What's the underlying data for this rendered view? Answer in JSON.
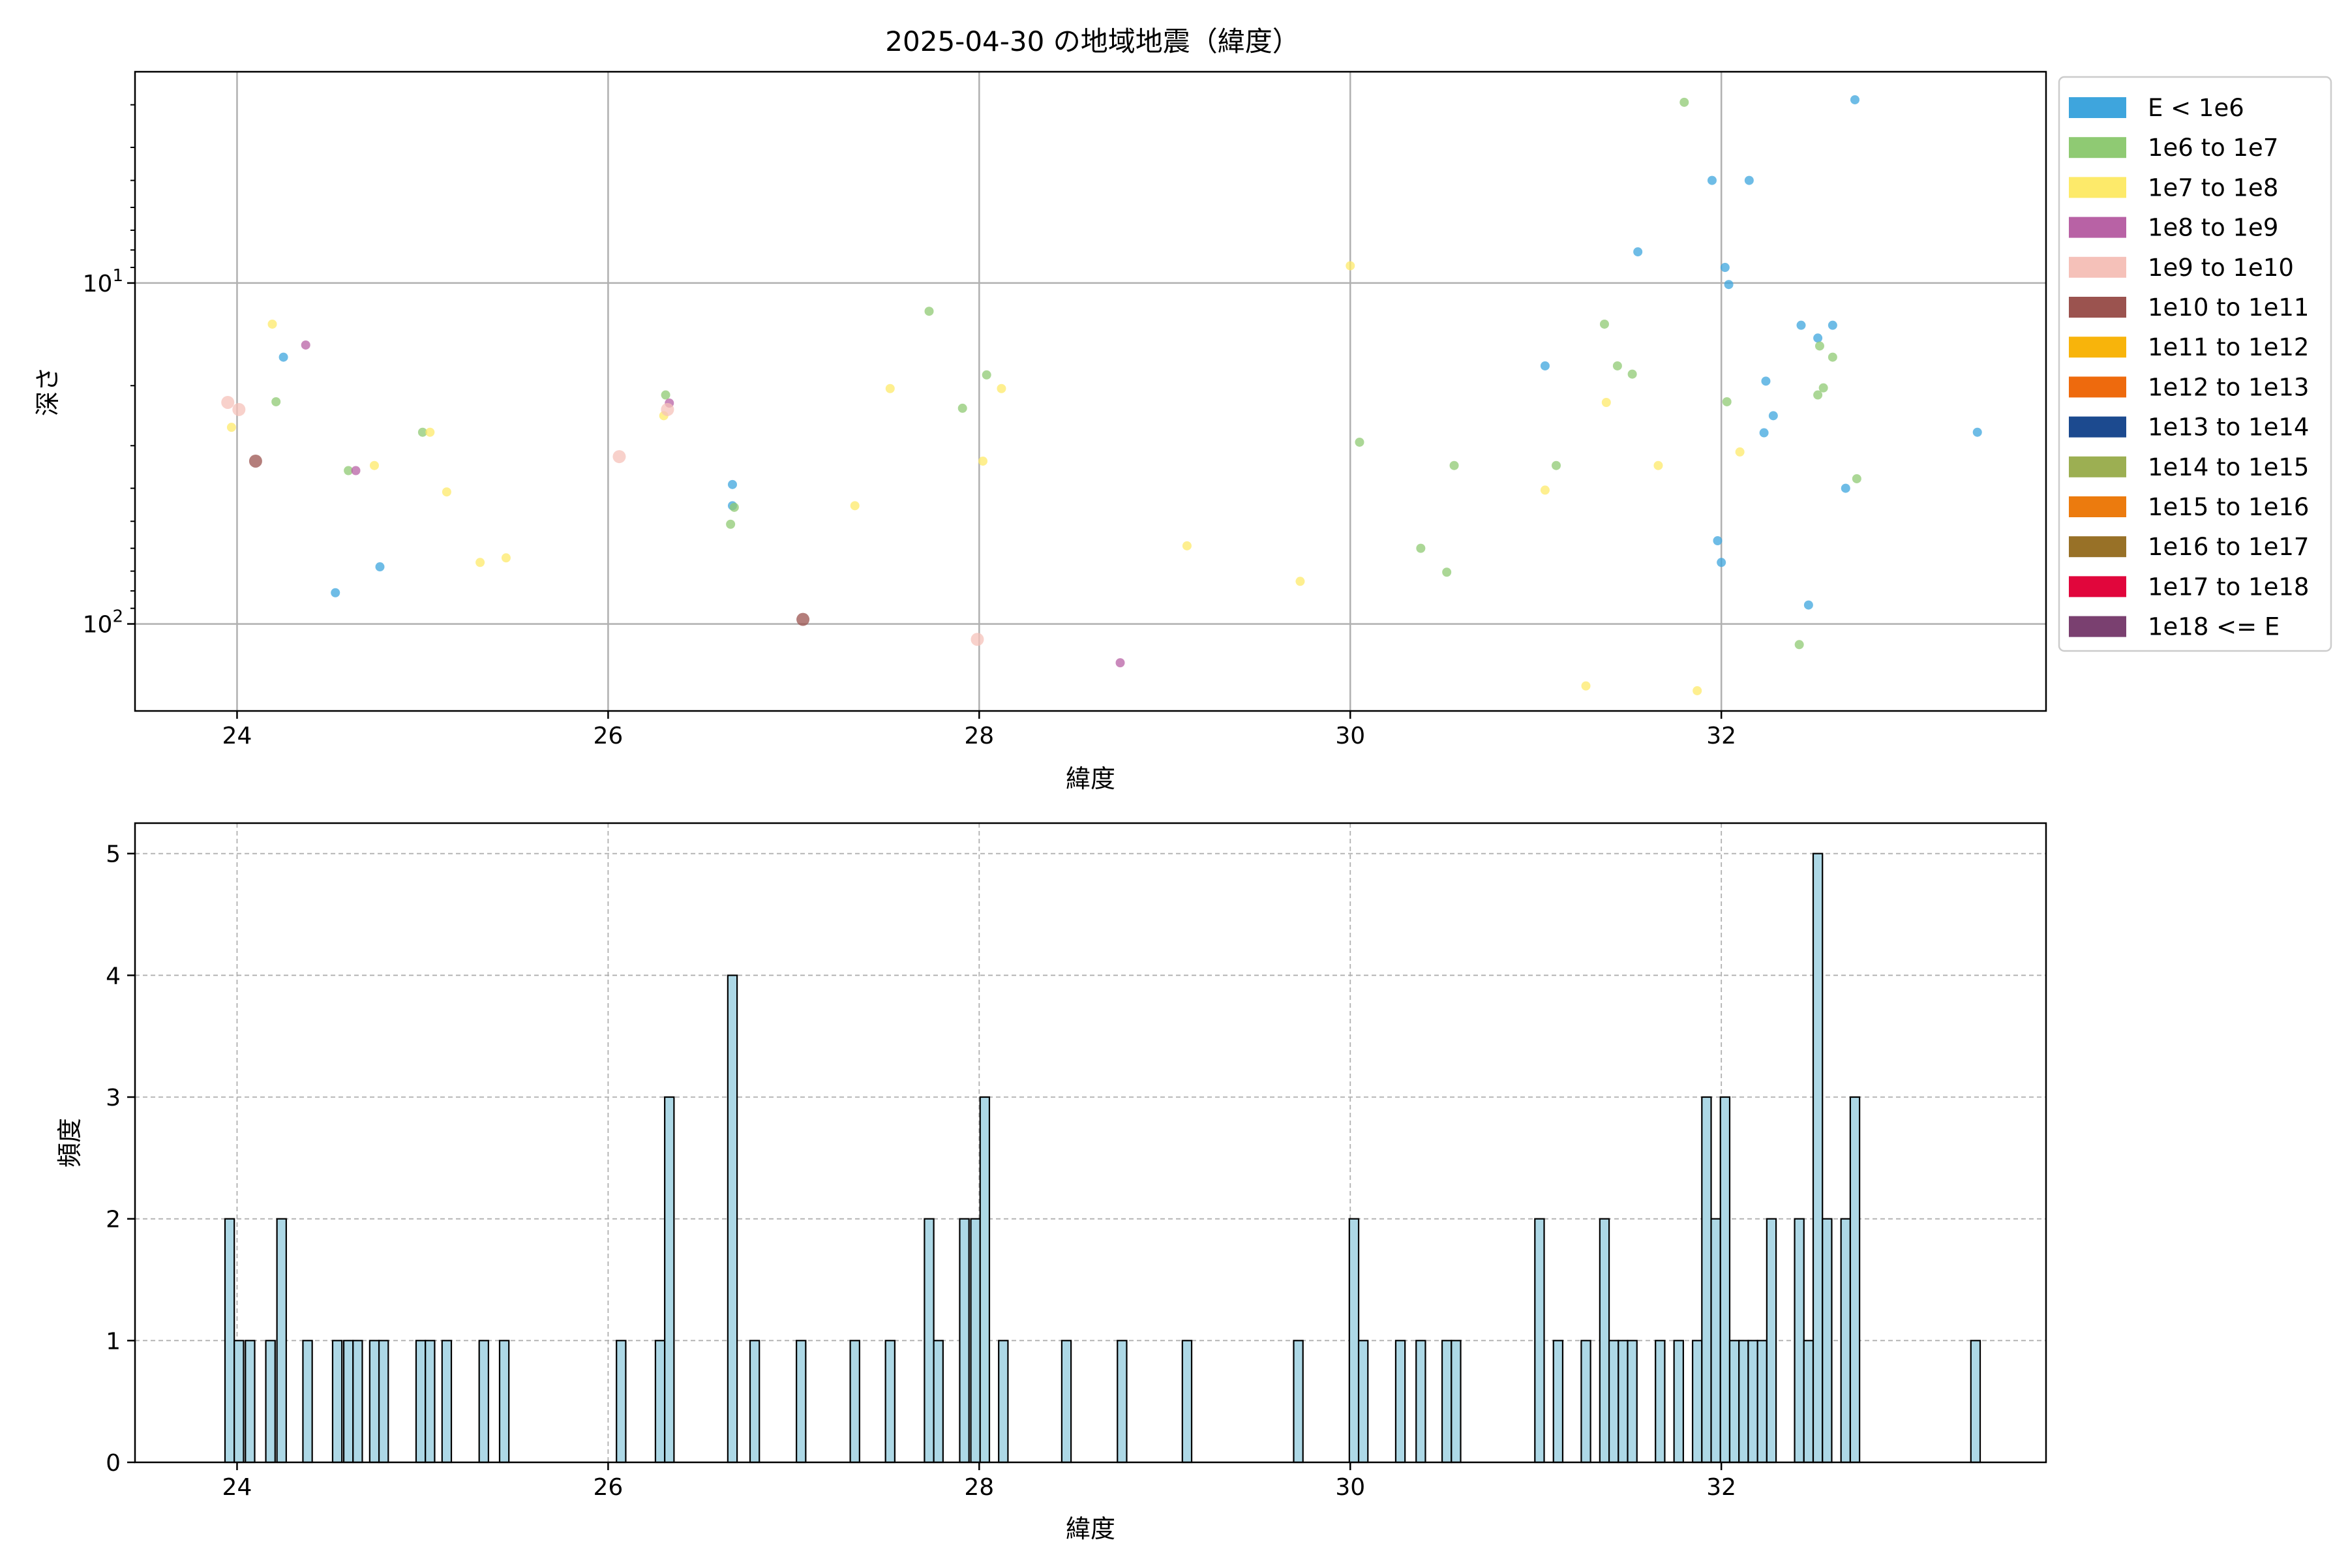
{
  "chart_data": [
    {
      "type": "scatter",
      "title": "2025-04-30 の地域地震（緯度）",
      "xlabel": "緯度",
      "ylabel": "深さ",
      "xlim": [
        23.45,
        33.75
      ],
      "ylim": [
        180,
        2.4
      ],
      "y_scale": "log",
      "y_inverted": true,
      "grid": true,
      "legend_position": "outside-right",
      "x_ticks": [
        "24",
        "26",
        "28",
        "30",
        "32"
      ],
      "y_ticks": [
        {
          "value": 10,
          "base": "10",
          "exp": "1"
        },
        {
          "value": 100,
          "base": "10",
          "exp": "2"
        }
      ],
      "legend": [
        {
          "label": "E < 1e6",
          "color": "#3ea5dd"
        },
        {
          "label": "1e6 to 1e7",
          "color": "#8fca73"
        },
        {
          "label": "1e7 to 1e8",
          "color": "#fdea6a"
        },
        {
          "label": "1e8 to 1e9",
          "color": "#b862a5"
        },
        {
          "label": "1e9 to 1e10",
          "color": "#f5c1b9"
        },
        {
          "label": "1e10 to 1e11",
          "color": "#9b534f"
        },
        {
          "label": "1e11 to 1e12",
          "color": "#f8b40b"
        },
        {
          "label": "1e12 to 1e13",
          "color": "#ee6a0d"
        },
        {
          "label": "1e13 to 1e14",
          "color": "#1c4a8f"
        },
        {
          "label": "1e14 to 1e15",
          "color": "#9caf52"
        },
        {
          "label": "1e15 to 1e16",
          "color": "#ec7b0e"
        },
        {
          "label": "1e16 to 1e17",
          "color": "#987127"
        },
        {
          "label": "1e17 to 1e18",
          "color": "#e1063c"
        },
        {
          "label": "1e18 <= E",
          "color": "#7a4070"
        }
      ],
      "points": [
        {
          "x": 24.25,
          "y": 16.5,
          "c": 0
        },
        {
          "x": 24.53,
          "y": 81,
          "c": 0
        },
        {
          "x": 24.77,
          "y": 68,
          "c": 0
        },
        {
          "x": 26.67,
          "y": 39,
          "c": 0
        },
        {
          "x": 26.67,
          "y": 45,
          "c": 0
        },
        {
          "x": 31.05,
          "y": 17.5,
          "c": 0
        },
        {
          "x": 31.55,
          "y": 8.1,
          "c": 0
        },
        {
          "x": 31.95,
          "y": 5.0,
          "c": 0
        },
        {
          "x": 31.98,
          "y": 57,
          "c": 0
        },
        {
          "x": 32.0,
          "y": 66,
          "c": 0
        },
        {
          "x": 32.02,
          "y": 9.0,
          "c": 0
        },
        {
          "x": 32.04,
          "y": 10.1,
          "c": 0
        },
        {
          "x": 32.15,
          "y": 5.0,
          "c": 0
        },
        {
          "x": 32.23,
          "y": 27.5,
          "c": 0
        },
        {
          "x": 32.24,
          "y": 19.4,
          "c": 0
        },
        {
          "x": 32.28,
          "y": 24.5,
          "c": 0
        },
        {
          "x": 32.43,
          "y": 13.3,
          "c": 0
        },
        {
          "x": 32.47,
          "y": 88,
          "c": 0
        },
        {
          "x": 32.52,
          "y": 14.5,
          "c": 0
        },
        {
          "x": 32.6,
          "y": 13.3,
          "c": 0
        },
        {
          "x": 32.67,
          "y": 40,
          "c": 0
        },
        {
          "x": 32.72,
          "y": 2.9,
          "c": 0
        },
        {
          "x": 33.38,
          "y": 27.4,
          "c": 0
        },
        {
          "x": 24.21,
          "y": 22.3,
          "c": 1
        },
        {
          "x": 24.6,
          "y": 35.5,
          "c": 1
        },
        {
          "x": 25.0,
          "y": 27.4,
          "c": 1
        },
        {
          "x": 26.31,
          "y": 21.3,
          "c": 1
        },
        {
          "x": 26.66,
          "y": 51,
          "c": 1
        },
        {
          "x": 26.68,
          "y": 45.5,
          "c": 1
        },
        {
          "x": 27.73,
          "y": 12.1,
          "c": 1
        },
        {
          "x": 27.91,
          "y": 23.3,
          "c": 1
        },
        {
          "x": 28.04,
          "y": 18.6,
          "c": 1
        },
        {
          "x": 30.05,
          "y": 29.3,
          "c": 1
        },
        {
          "x": 30.38,
          "y": 60,
          "c": 1
        },
        {
          "x": 30.52,
          "y": 70.5,
          "c": 1
        },
        {
          "x": 30.56,
          "y": 34.3,
          "c": 1
        },
        {
          "x": 31.11,
          "y": 34.3,
          "c": 1
        },
        {
          "x": 31.37,
          "y": 13.2,
          "c": 1
        },
        {
          "x": 31.44,
          "y": 17.5,
          "c": 1
        },
        {
          "x": 31.52,
          "y": 18.5,
          "c": 1
        },
        {
          "x": 31.8,
          "y": 2.95,
          "c": 1
        },
        {
          "x": 32.03,
          "y": 22.3,
          "c": 1
        },
        {
          "x": 32.42,
          "y": 115,
          "c": 1
        },
        {
          "x": 32.52,
          "y": 21.3,
          "c": 1
        },
        {
          "x": 32.53,
          "y": 15.3,
          "c": 1
        },
        {
          "x": 32.55,
          "y": 20.3,
          "c": 1
        },
        {
          "x": 32.6,
          "y": 16.5,
          "c": 1
        },
        {
          "x": 32.73,
          "y": 37.5,
          "c": 1
        },
        {
          "x": 23.97,
          "y": 26.5,
          "c": 2
        },
        {
          "x": 24.19,
          "y": 13.2,
          "c": 2
        },
        {
          "x": 24.74,
          "y": 34.3,
          "c": 2
        },
        {
          "x": 25.04,
          "y": 27.4,
          "c": 2
        },
        {
          "x": 25.13,
          "y": 41,
          "c": 2
        },
        {
          "x": 25.31,
          "y": 66,
          "c": 2
        },
        {
          "x": 25.45,
          "y": 64,
          "c": 2
        },
        {
          "x": 26.3,
          "y": 24.5,
          "c": 2
        },
        {
          "x": 27.33,
          "y": 45,
          "c": 2
        },
        {
          "x": 27.52,
          "y": 20.4,
          "c": 2
        },
        {
          "x": 28.02,
          "y": 33.3,
          "c": 2
        },
        {
          "x": 28.12,
          "y": 20.4,
          "c": 2
        },
        {
          "x": 29.12,
          "y": 59,
          "c": 2
        },
        {
          "x": 29.73,
          "y": 75,
          "c": 2
        },
        {
          "x": 30.0,
          "y": 8.9,
          "c": 2
        },
        {
          "x": 31.05,
          "y": 40.5,
          "c": 2
        },
        {
          "x": 31.27,
          "y": 152,
          "c": 2
        },
        {
          "x": 31.38,
          "y": 22.4,
          "c": 2
        },
        {
          "x": 31.66,
          "y": 34.3,
          "c": 2
        },
        {
          "x": 31.87,
          "y": 157,
          "c": 2
        },
        {
          "x": 32.1,
          "y": 31.3,
          "c": 2
        },
        {
          "x": 24.37,
          "y": 15.2,
          "c": 3
        },
        {
          "x": 24.64,
          "y": 35.5,
          "c": 3
        },
        {
          "x": 26.33,
          "y": 22.5,
          "c": 3
        },
        {
          "x": 28.76,
          "y": 130,
          "c": 3
        },
        {
          "x": 23.95,
          "y": 22.4,
          "c": 4
        },
        {
          "x": 24.01,
          "y": 23.5,
          "c": 4
        },
        {
          "x": 26.06,
          "y": 32.3,
          "c": 4
        },
        {
          "x": 26.32,
          "y": 23.5,
          "c": 4
        },
        {
          "x": 27.99,
          "y": 111,
          "c": 4
        },
        {
          "x": 24.1,
          "y": 33.3,
          "c": 5
        },
        {
          "x": 27.05,
          "y": 97,
          "c": 5
        }
      ]
    },
    {
      "type": "bar",
      "xlabel": "緯度",
      "ylabel": "頻度",
      "xlim": [
        23.45,
        33.75
      ],
      "ylim": [
        0,
        5.25
      ],
      "grid": true,
      "x_ticks": [
        "24",
        "26",
        "28",
        "30",
        "32"
      ],
      "y_ticks": [
        "0",
        "1",
        "2",
        "3",
        "4",
        "5"
      ],
      "bar_color": "#add8e6",
      "bin_width": 0.05,
      "bins": [
        {
          "x": 23.96,
          "v": 2
        },
        {
          "x": 24.01,
          "v": 1
        },
        {
          "x": 24.07,
          "v": 1
        },
        {
          "x": 24.18,
          "v": 1
        },
        {
          "x": 24.24,
          "v": 2
        },
        {
          "x": 24.38,
          "v": 1
        },
        {
          "x": 24.54,
          "v": 1
        },
        {
          "x": 24.6,
          "v": 1
        },
        {
          "x": 24.65,
          "v": 1
        },
        {
          "x": 24.74,
          "v": 1
        },
        {
          "x": 24.79,
          "v": 1
        },
        {
          "x": 24.99,
          "v": 1
        },
        {
          "x": 25.04,
          "v": 1
        },
        {
          "x": 25.13,
          "v": 1
        },
        {
          "x": 25.33,
          "v": 1
        },
        {
          "x": 25.44,
          "v": 1
        },
        {
          "x": 26.07,
          "v": 1
        },
        {
          "x": 26.28,
          "v": 1
        },
        {
          "x": 26.33,
          "v": 3
        },
        {
          "x": 26.67,
          "v": 4
        },
        {
          "x": 26.79,
          "v": 1
        },
        {
          "x": 27.04,
          "v": 1
        },
        {
          "x": 27.33,
          "v": 1
        },
        {
          "x": 27.52,
          "v": 1
        },
        {
          "x": 27.73,
          "v": 2
        },
        {
          "x": 27.78,
          "v": 1
        },
        {
          "x": 27.92,
          "v": 2
        },
        {
          "x": 27.98,
          "v": 2
        },
        {
          "x": 28.03,
          "v": 3
        },
        {
          "x": 28.13,
          "v": 1
        },
        {
          "x": 28.47,
          "v": 1
        },
        {
          "x": 28.77,
          "v": 1
        },
        {
          "x": 29.12,
          "v": 1
        },
        {
          "x": 29.72,
          "v": 1
        },
        {
          "x": 30.02,
          "v": 2
        },
        {
          "x": 30.07,
          "v": 1
        },
        {
          "x": 30.27,
          "v": 1
        },
        {
          "x": 30.38,
          "v": 1
        },
        {
          "x": 30.52,
          "v": 1
        },
        {
          "x": 30.57,
          "v": 1
        },
        {
          "x": 31.02,
          "v": 2
        },
        {
          "x": 31.12,
          "v": 1
        },
        {
          "x": 31.27,
          "v": 1
        },
        {
          "x": 31.37,
          "v": 2
        },
        {
          "x": 31.42,
          "v": 1
        },
        {
          "x": 31.47,
          "v": 1
        },
        {
          "x": 31.52,
          "v": 1
        },
        {
          "x": 31.67,
          "v": 1
        },
        {
          "x": 31.77,
          "v": 1
        },
        {
          "x": 31.87,
          "v": 1
        },
        {
          "x": 31.92,
          "v": 3
        },
        {
          "x": 31.97,
          "v": 2
        },
        {
          "x": 32.02,
          "v": 3
        },
        {
          "x": 32.07,
          "v": 1
        },
        {
          "x": 32.12,
          "v": 1
        },
        {
          "x": 32.17,
          "v": 1
        },
        {
          "x": 32.22,
          "v": 1
        },
        {
          "x": 32.27,
          "v": 2
        },
        {
          "x": 32.42,
          "v": 2
        },
        {
          "x": 32.47,
          "v": 1
        },
        {
          "x": 32.52,
          "v": 5
        },
        {
          "x": 32.57,
          "v": 2
        },
        {
          "x": 32.67,
          "v": 2
        },
        {
          "x": 32.72,
          "v": 3
        },
        {
          "x": 33.37,
          "v": 1
        }
      ]
    }
  ]
}
